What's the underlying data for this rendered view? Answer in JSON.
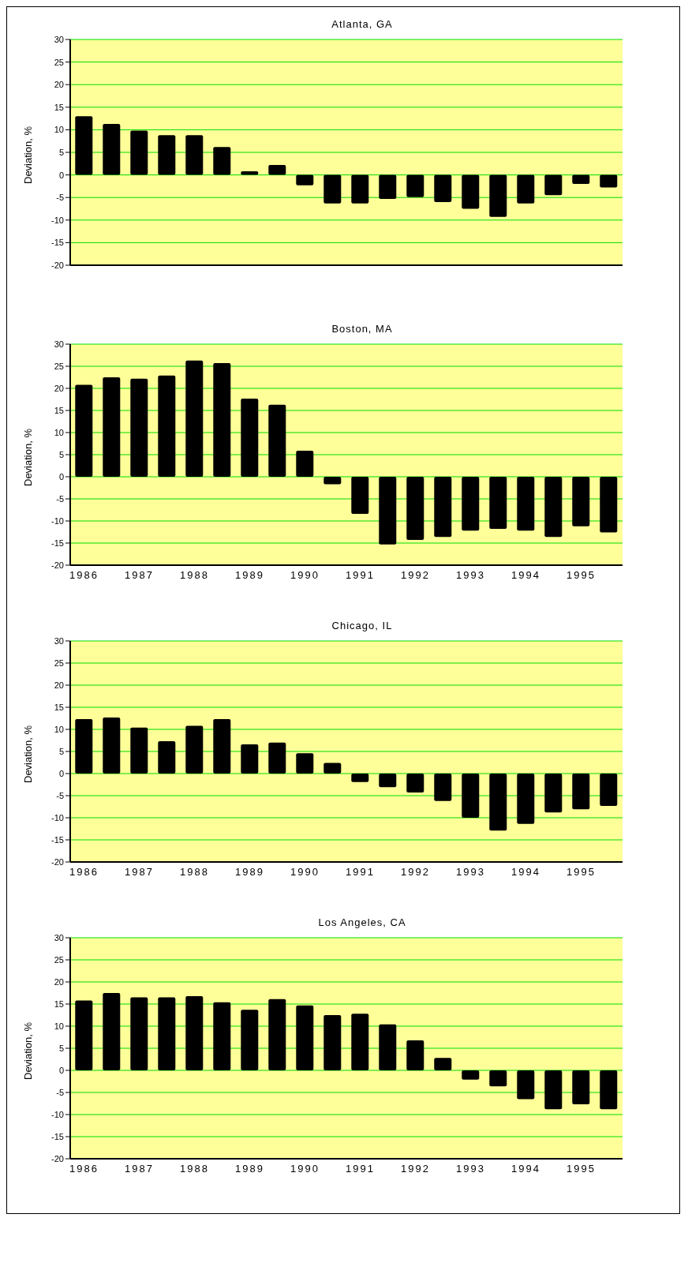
{
  "chart_data": [
    {
      "type": "bar",
      "title": "Atlanta, GA",
      "ylabel": "Deviation, %",
      "categories": [
        null,
        null,
        null,
        null,
        null,
        null,
        null,
        null,
        null,
        null,
        null,
        null,
        null,
        null,
        null,
        null,
        null,
        null,
        null,
        null
      ],
      "color": "#000000",
      "values": [
        13,
        11.3,
        9.8,
        8.8,
        8.8,
        6.2,
        0.8,
        2.2,
        -2.3,
        -6.3,
        -6.3,
        -5.3,
        -4.9,
        -6,
        -7.5,
        -9.3,
        -6.3,
        -4.5,
        -2,
        -2.8
      ],
      "ylim": [
        -20,
        30
      ],
      "yticks": [
        -20,
        -15,
        -10,
        -5,
        0,
        5,
        10,
        15,
        20,
        25,
        30
      ],
      "grid": "y"
    },
    {
      "type": "bar",
      "title": "Boston, MA",
      "ylabel": "Deviation, %",
      "categories": [
        "1986",
        null,
        "1987",
        null,
        "1988",
        null,
        "1989",
        null,
        "1990",
        null,
        "1991",
        null,
        "1992",
        null,
        "1993",
        null,
        "1994",
        null,
        "1995",
        null
      ],
      "color": "#000000",
      "values": [
        20.8,
        22.5,
        22.2,
        22.9,
        26.3,
        25.7,
        17.7,
        16.3,
        5.9,
        -1.7,
        -8.4,
        -15.3,
        -14.3,
        -13.6,
        -12.2,
        -11.8,
        -12.2,
        -13.6,
        -11.2,
        -12.6
      ],
      "ylim": [
        -20,
        30
      ],
      "yticks": [
        -20,
        -15,
        -10,
        -5,
        0,
        5,
        10,
        15,
        20,
        25,
        30
      ],
      "grid": "y"
    },
    {
      "type": "bar",
      "title": "Chicago, IL",
      "ylabel": "Deviation, %",
      "categories": [
        "1986",
        null,
        "1987",
        null,
        "1988",
        null,
        "1989",
        null,
        "1990",
        null,
        "1991",
        null,
        "1992",
        null,
        "1993",
        null,
        "1994",
        null,
        "1995",
        null
      ],
      "color": "#000000",
      "values": [
        12.3,
        12.7,
        10.4,
        7.3,
        10.8,
        12.3,
        6.6,
        7,
        4.6,
        2.4,
        -1.9,
        -3.1,
        -4.3,
        -6.2,
        -10,
        -12.9,
        -11.4,
        -8.8,
        -8.1,
        -7.3
      ],
      "ylim": [
        -20,
        30
      ],
      "yticks": [
        -20,
        -15,
        -10,
        -5,
        0,
        5,
        10,
        15,
        20,
        25,
        30
      ],
      "grid": "y"
    },
    {
      "type": "bar",
      "title": "Los Angeles, CA",
      "ylabel": "Deviation, %",
      "categories": [
        "1986",
        null,
        "1987",
        null,
        "1988",
        null,
        "1989",
        null,
        "1990",
        null,
        "1991",
        null,
        "1992",
        null,
        "1993",
        null,
        "1994",
        null,
        "1995",
        null
      ],
      "color": "#000000",
      "values": [
        15.8,
        17.5,
        16.5,
        16.5,
        16.8,
        15.4,
        13.7,
        16.1,
        14.7,
        12.5,
        12.8,
        10.4,
        6.8,
        2.8,
        -2.1,
        -3.6,
        -6.5,
        -8.8,
        -7.7,
        -8.8
      ],
      "ylim": [
        -20,
        30
      ],
      "yticks": [
        -20,
        -15,
        -10,
        -5,
        0,
        5,
        10,
        15,
        20,
        25,
        30
      ],
      "grid": "y"
    }
  ]
}
